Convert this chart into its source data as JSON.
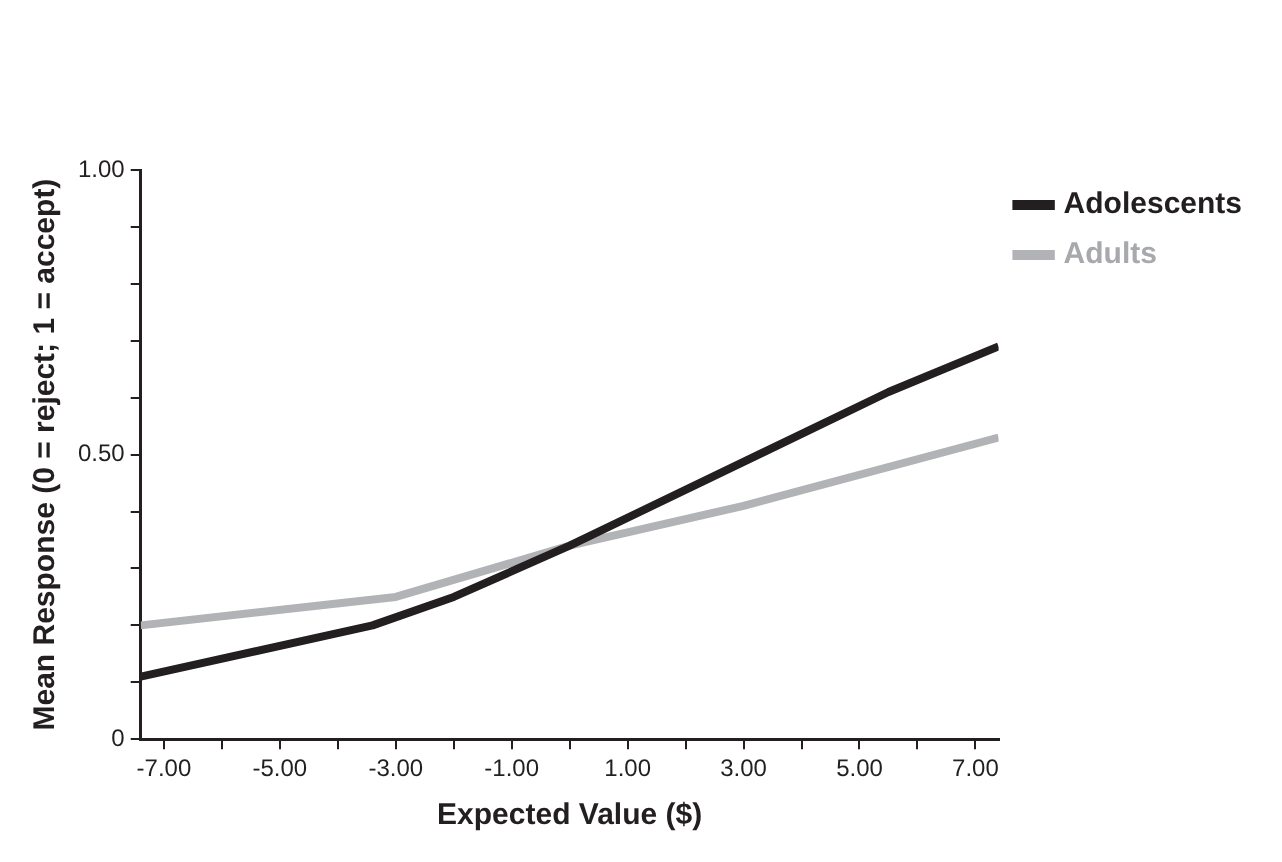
{
  "chart_data": {
    "type": "line",
    "xlabel": "Expected Value ($)",
    "ylabel": "Mean Response (0 = reject; 1 = accept)",
    "series": [
      {
        "name": "Adolescents",
        "color": "#231f20",
        "x": [
          -7.4,
          -3.4,
          -2,
          0,
          5.5,
          7.4
        ],
        "values": [
          0.11,
          0.2,
          0.25,
          0.34,
          0.61,
          0.69
        ]
      },
      {
        "name": "Adults",
        "color": "#b1b3b6",
        "x": [
          -7.4,
          -3,
          0,
          3,
          7.4
        ],
        "values": [
          0.2,
          0.25,
          0.34,
          0.41,
          0.53
        ]
      }
    ],
    "xlim": [
      -7.4,
      7.4
    ],
    "xticks": [
      {
        "value": -7,
        "label": "-7.00"
      },
      {
        "value": -6,
        "label": null
      },
      {
        "value": -5,
        "label": "-5.00"
      },
      {
        "value": -4,
        "label": null
      },
      {
        "value": -3,
        "label": "-3.00"
      },
      {
        "value": -2,
        "label": null
      },
      {
        "value": -1,
        "label": "-1.00"
      },
      {
        "value": 0,
        "label": null
      },
      {
        "value": 1,
        "label": "1.00"
      },
      {
        "value": 2,
        "label": null
      },
      {
        "value": 3,
        "label": "3.00"
      },
      {
        "value": 4,
        "label": null
      },
      {
        "value": 5,
        "label": "5.00"
      },
      {
        "value": 6,
        "label": null
      },
      {
        "value": 7,
        "label": "7.00"
      }
    ],
    "ylim": [
      0,
      1
    ],
    "yticks": [
      0,
      {
        "value": 0.1,
        "label": null
      },
      {
        "value": 0.2,
        "label": null
      },
      {
        "value": 0.3,
        "label": null
      },
      {
        "value": 0.4,
        "label": null
      },
      {
        "value": 0.5,
        "label": "0.50"
      },
      {
        "value": 0.6,
        "label": null
      },
      {
        "value": 0.7,
        "label": null
      },
      {
        "value": 0.8,
        "label": null
      },
      {
        "value": 0.9,
        "label": null
      },
      {
        "value": 1,
        "label": "1.00"
      }
    ],
    "grid": false,
    "legend": "top right",
    "marker": "none",
    "line_style": "solid"
  }
}
